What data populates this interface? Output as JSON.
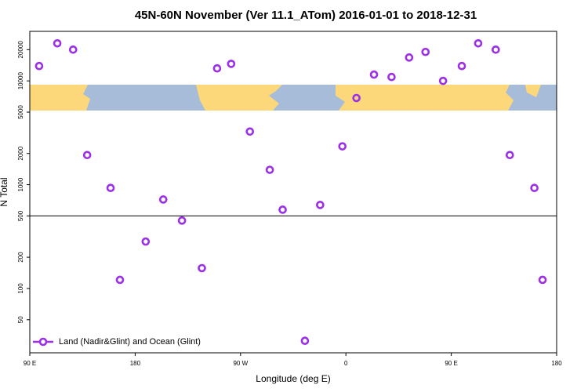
{
  "chart_data": {
    "type": "scatter",
    "title": "45N-60N November (Ver 11.1_ATom)   2016-01-01 to 2018-12-31",
    "x_label": "Longitude (deg E)",
    "y_label": "N Total",
    "ylog": true,
    "hline": 500,
    "legend": "bottom-left",
    "xlim": [
      90,
      540
    ],
    "xticks": [
      {
        "value": 90,
        "label": "90 E"
      },
      {
        "value": 180,
        "label": "180"
      },
      {
        "value": 270,
        "label": "90 W"
      },
      {
        "value": 360,
        "label": "0"
      },
      {
        "value": 450,
        "label": "90 E"
      },
      {
        "value": 540,
        "label": "180"
      }
    ],
    "ylim": [
      24,
      30000
    ],
    "yticks": [
      50,
      100,
      200,
      500,
      1000,
      2000,
      5000,
      10000,
      20000
    ],
    "series": [
      {
        "name": "Land (Nadir&Glint) and Ocean (Glint)",
        "color": "#9b30e8",
        "x": [
          98,
          113.5,
          127,
          139,
          159,
          167,
          189,
          204,
          220,
          237,
          250,
          262,
          278,
          295,
          306,
          325,
          338,
          357,
          369,
          384,
          399,
          414,
          428,
          443,
          459,
          473,
          488,
          500,
          521,
          528
        ],
        "values": [
          13900,
          23000,
          20000,
          1930,
          930,
          121,
          283,
          720,
          451,
          157,
          13200,
          14600,
          3250,
          1390,
          574,
          31.3,
          638,
          2340,
          6840,
          11500,
          10900,
          16800,
          19000,
          10000,
          13900,
          23000,
          20000,
          1930,
          930,
          121
        ]
      }
    ]
  }
}
